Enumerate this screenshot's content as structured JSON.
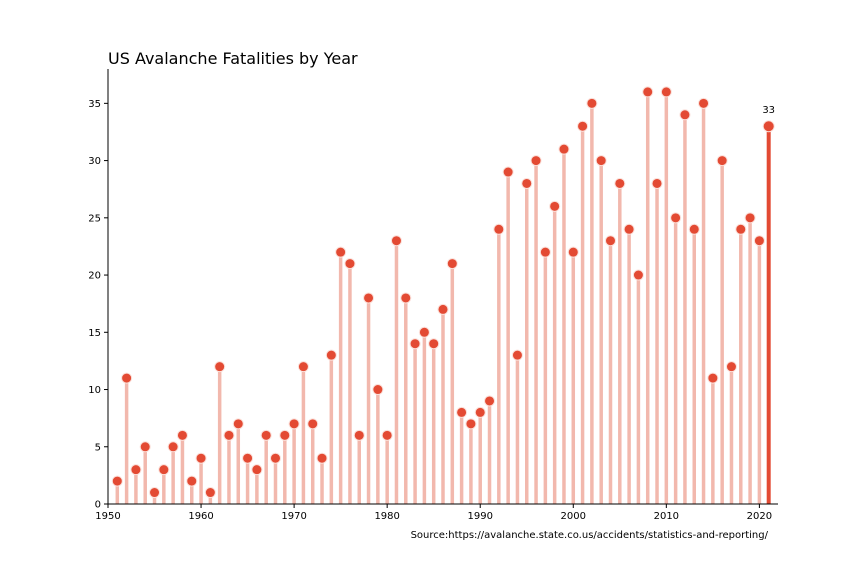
{
  "chart_data": {
    "type": "lollipop",
    "title": "US Avalanche Fatalities by Year",
    "source": "Source:https://avalanche.state.co.us/accidents/statistics-and-reporting/",
    "xlabel": "",
    "ylabel": "",
    "xlim": [
      1950,
      2022
    ],
    "ylim": [
      0,
      38
    ],
    "xticks": [
      1950,
      1960,
      1970,
      1980,
      1990,
      2000,
      2010,
      2020
    ],
    "yticks": [
      0,
      5,
      10,
      15,
      20,
      25,
      30,
      35
    ],
    "grid": false,
    "colors": {
      "stem": "#f2b8ad",
      "marker": "#e34a33",
      "highlight": "#e34a33"
    },
    "highlight": {
      "x": 2021,
      "label": "33"
    },
    "series": [
      {
        "x": [
          1951,
          1952,
          1953,
          1954,
          1955,
          1956,
          1957,
          1958,
          1959,
          1960,
          1961,
          1962,
          1963,
          1964,
          1965,
          1966,
          1967,
          1968,
          1969,
          1970,
          1971,
          1972,
          1973,
          1974,
          1975,
          1976,
          1977,
          1978,
          1979,
          1980,
          1981,
          1982,
          1983,
          1984,
          1985,
          1986,
          1987,
          1988,
          1989,
          1990,
          1991,
          1992,
          1993,
          1994,
          1995,
          1996,
          1997,
          1998,
          1999,
          2000,
          2001,
          2002,
          2003,
          2004,
          2005,
          2006,
          2007,
          2008,
          2009,
          2010,
          2011,
          2012,
          2013,
          2014,
          2015,
          2016,
          2017,
          2018,
          2019,
          2020,
          2021
        ],
        "y": [
          2,
          11,
          3,
          5,
          1,
          3,
          5,
          6,
          2,
          4,
          1,
          12,
          6,
          7,
          4,
          3,
          6,
          4,
          6,
          7,
          12,
          7,
          4,
          13,
          22,
          21,
          6,
          18,
          10,
          6,
          23,
          18,
          14,
          15,
          14,
          17,
          21,
          8,
          7,
          8,
          9,
          24,
          29,
          13,
          28,
          30,
          22,
          26,
          31,
          22,
          33,
          35,
          30,
          23,
          28,
          24,
          20,
          36,
          28,
          36,
          25,
          34,
          24,
          35,
          11,
          30,
          12,
          24,
          25,
          23,
          33
        ]
      }
    ]
  }
}
